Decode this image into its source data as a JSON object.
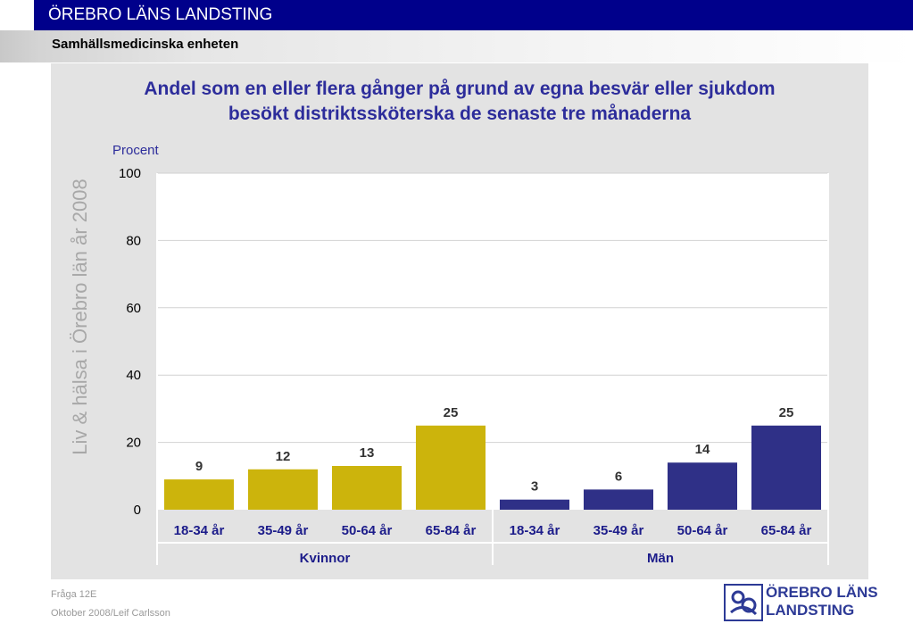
{
  "header": {
    "org_title": "ÖREBRO LÄNS LANDSTING",
    "unit_title": "Samhällsmedicinska enheten"
  },
  "watermark": "Liv & hälsa i Örebro län år 2008",
  "footer": {
    "question": "Fråga 12E",
    "date_author": "Oktober 2008/Leif Carlsson"
  },
  "logo": {
    "line1": "ÖREBRO LÄNS",
    "line2": "LANDSTING",
    "icon": "landsting-logo-icon"
  },
  "colors": {
    "header_bg": "#00008b",
    "kvinnor": "#ccb40c",
    "man": "#2f3087",
    "title": "#2d2d9b",
    "panel": "#e3e3e3"
  },
  "chart_data": {
    "type": "bar",
    "title_line1": "Andel som en eller flera gånger på grund av egna besvär  eller sjukdom",
    "title_line2": "besökt distriktssköterska de senaste tre månaderna",
    "ylabel": "Procent",
    "ylim": [
      0,
      100
    ],
    "yticks": [
      0,
      20,
      40,
      60,
      80,
      100
    ],
    "grid": true,
    "groups": [
      {
        "name": "Kvinnor",
        "color": "#ccb40c",
        "categories": [
          "18-34 år",
          "35-49 år",
          "50-64 år",
          "65-84 år"
        ],
        "values": [
          9,
          12,
          13,
          25
        ],
        "labels": [
          "9",
          "12",
          "13",
          "25"
        ]
      },
      {
        "name": "Män",
        "color": "#2f3087",
        "categories": [
          "18-34 år",
          "35-49 år",
          "50-64 år",
          "65-84 år"
        ],
        "values": [
          3,
          6,
          14,
          25
        ],
        "labels": [
          "3",
          "6",
          "14",
          "25"
        ]
      }
    ]
  }
}
